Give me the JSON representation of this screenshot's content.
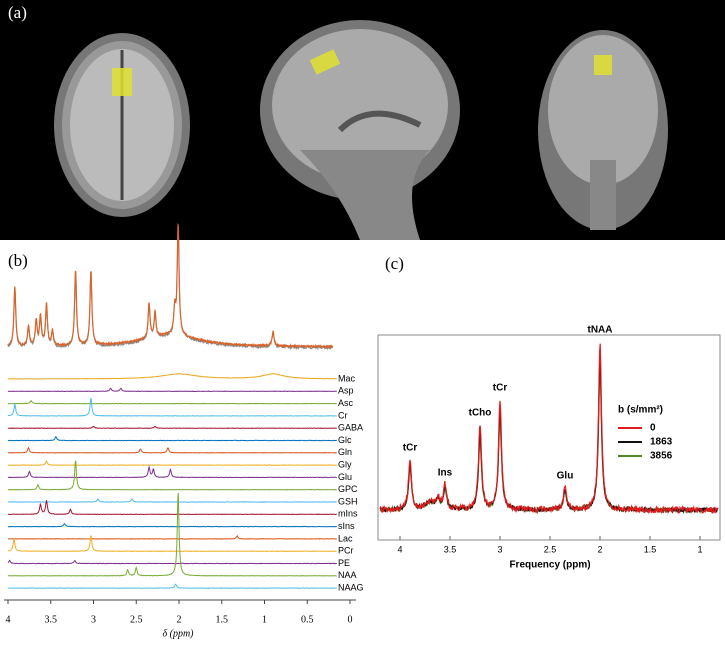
{
  "panel_labels": [
    "(a)",
    "(b)",
    "(c)"
  ],
  "panel_b": {
    "xlabel": "δ (ppm)",
    "xlim": [
      4,
      0
    ],
    "xticks": [
      4,
      3.5,
      3,
      2.5,
      2,
      1.5,
      1,
      0.5,
      0
    ],
    "metabolites": [
      {
        "name": "Mac",
        "color": "#e6a820"
      },
      {
        "name": "Asp",
        "color": "#7e2f8e"
      },
      {
        "name": "Asc",
        "color": "#77ac30"
      },
      {
        "name": "Cr",
        "color": "#4dbeee"
      },
      {
        "name": "GABA",
        "color": "#a2142f"
      },
      {
        "name": "Glc",
        "color": "#0072bd"
      },
      {
        "name": "Gln",
        "color": "#d95319"
      },
      {
        "name": "Gly",
        "color": "#edb120"
      },
      {
        "name": "Glu",
        "color": "#7e2f8e"
      },
      {
        "name": "GPC",
        "color": "#77ac30"
      },
      {
        "name": "GSH",
        "color": "#4dbeee"
      },
      {
        "name": "mIns",
        "color": "#a2142f"
      },
      {
        "name": "sIns",
        "color": "#0072bd"
      },
      {
        "name": "Lac",
        "color": "#d95319"
      },
      {
        "name": "PCr",
        "color": "#edb120"
      },
      {
        "name": "PE",
        "color": "#7e2f8e"
      },
      {
        "name": "NAA",
        "color": "#77ac30"
      },
      {
        "name": "NAAG",
        "color": "#4dbeee"
      }
    ]
  },
  "panel_c": {
    "xlabel": "Frequency (ppm)",
    "xlim": [
      4.22,
      0.8
    ],
    "xticks": [
      4,
      3.5,
      3,
      2.5,
      2,
      1.5,
      1
    ],
    "legend_title": "b (s/mm²)",
    "series": [
      {
        "name": "0",
        "color": "#e41a1c"
      },
      {
        "name": "1863",
        "color": "#111111"
      },
      {
        "name": "3856",
        "color": "#4f8a2a"
      }
    ],
    "annotations": [
      {
        "text": "tCr",
        "x": 3.9
      },
      {
        "text": "Ins",
        "x": 3.55
      },
      {
        "text": "tCho",
        "x": 3.2
      },
      {
        "text": "tCr",
        "x": 3.0
      },
      {
        "text": "Glu",
        "x": 2.35
      },
      {
        "text": "tNAA",
        "x": 2.0
      }
    ]
  }
}
